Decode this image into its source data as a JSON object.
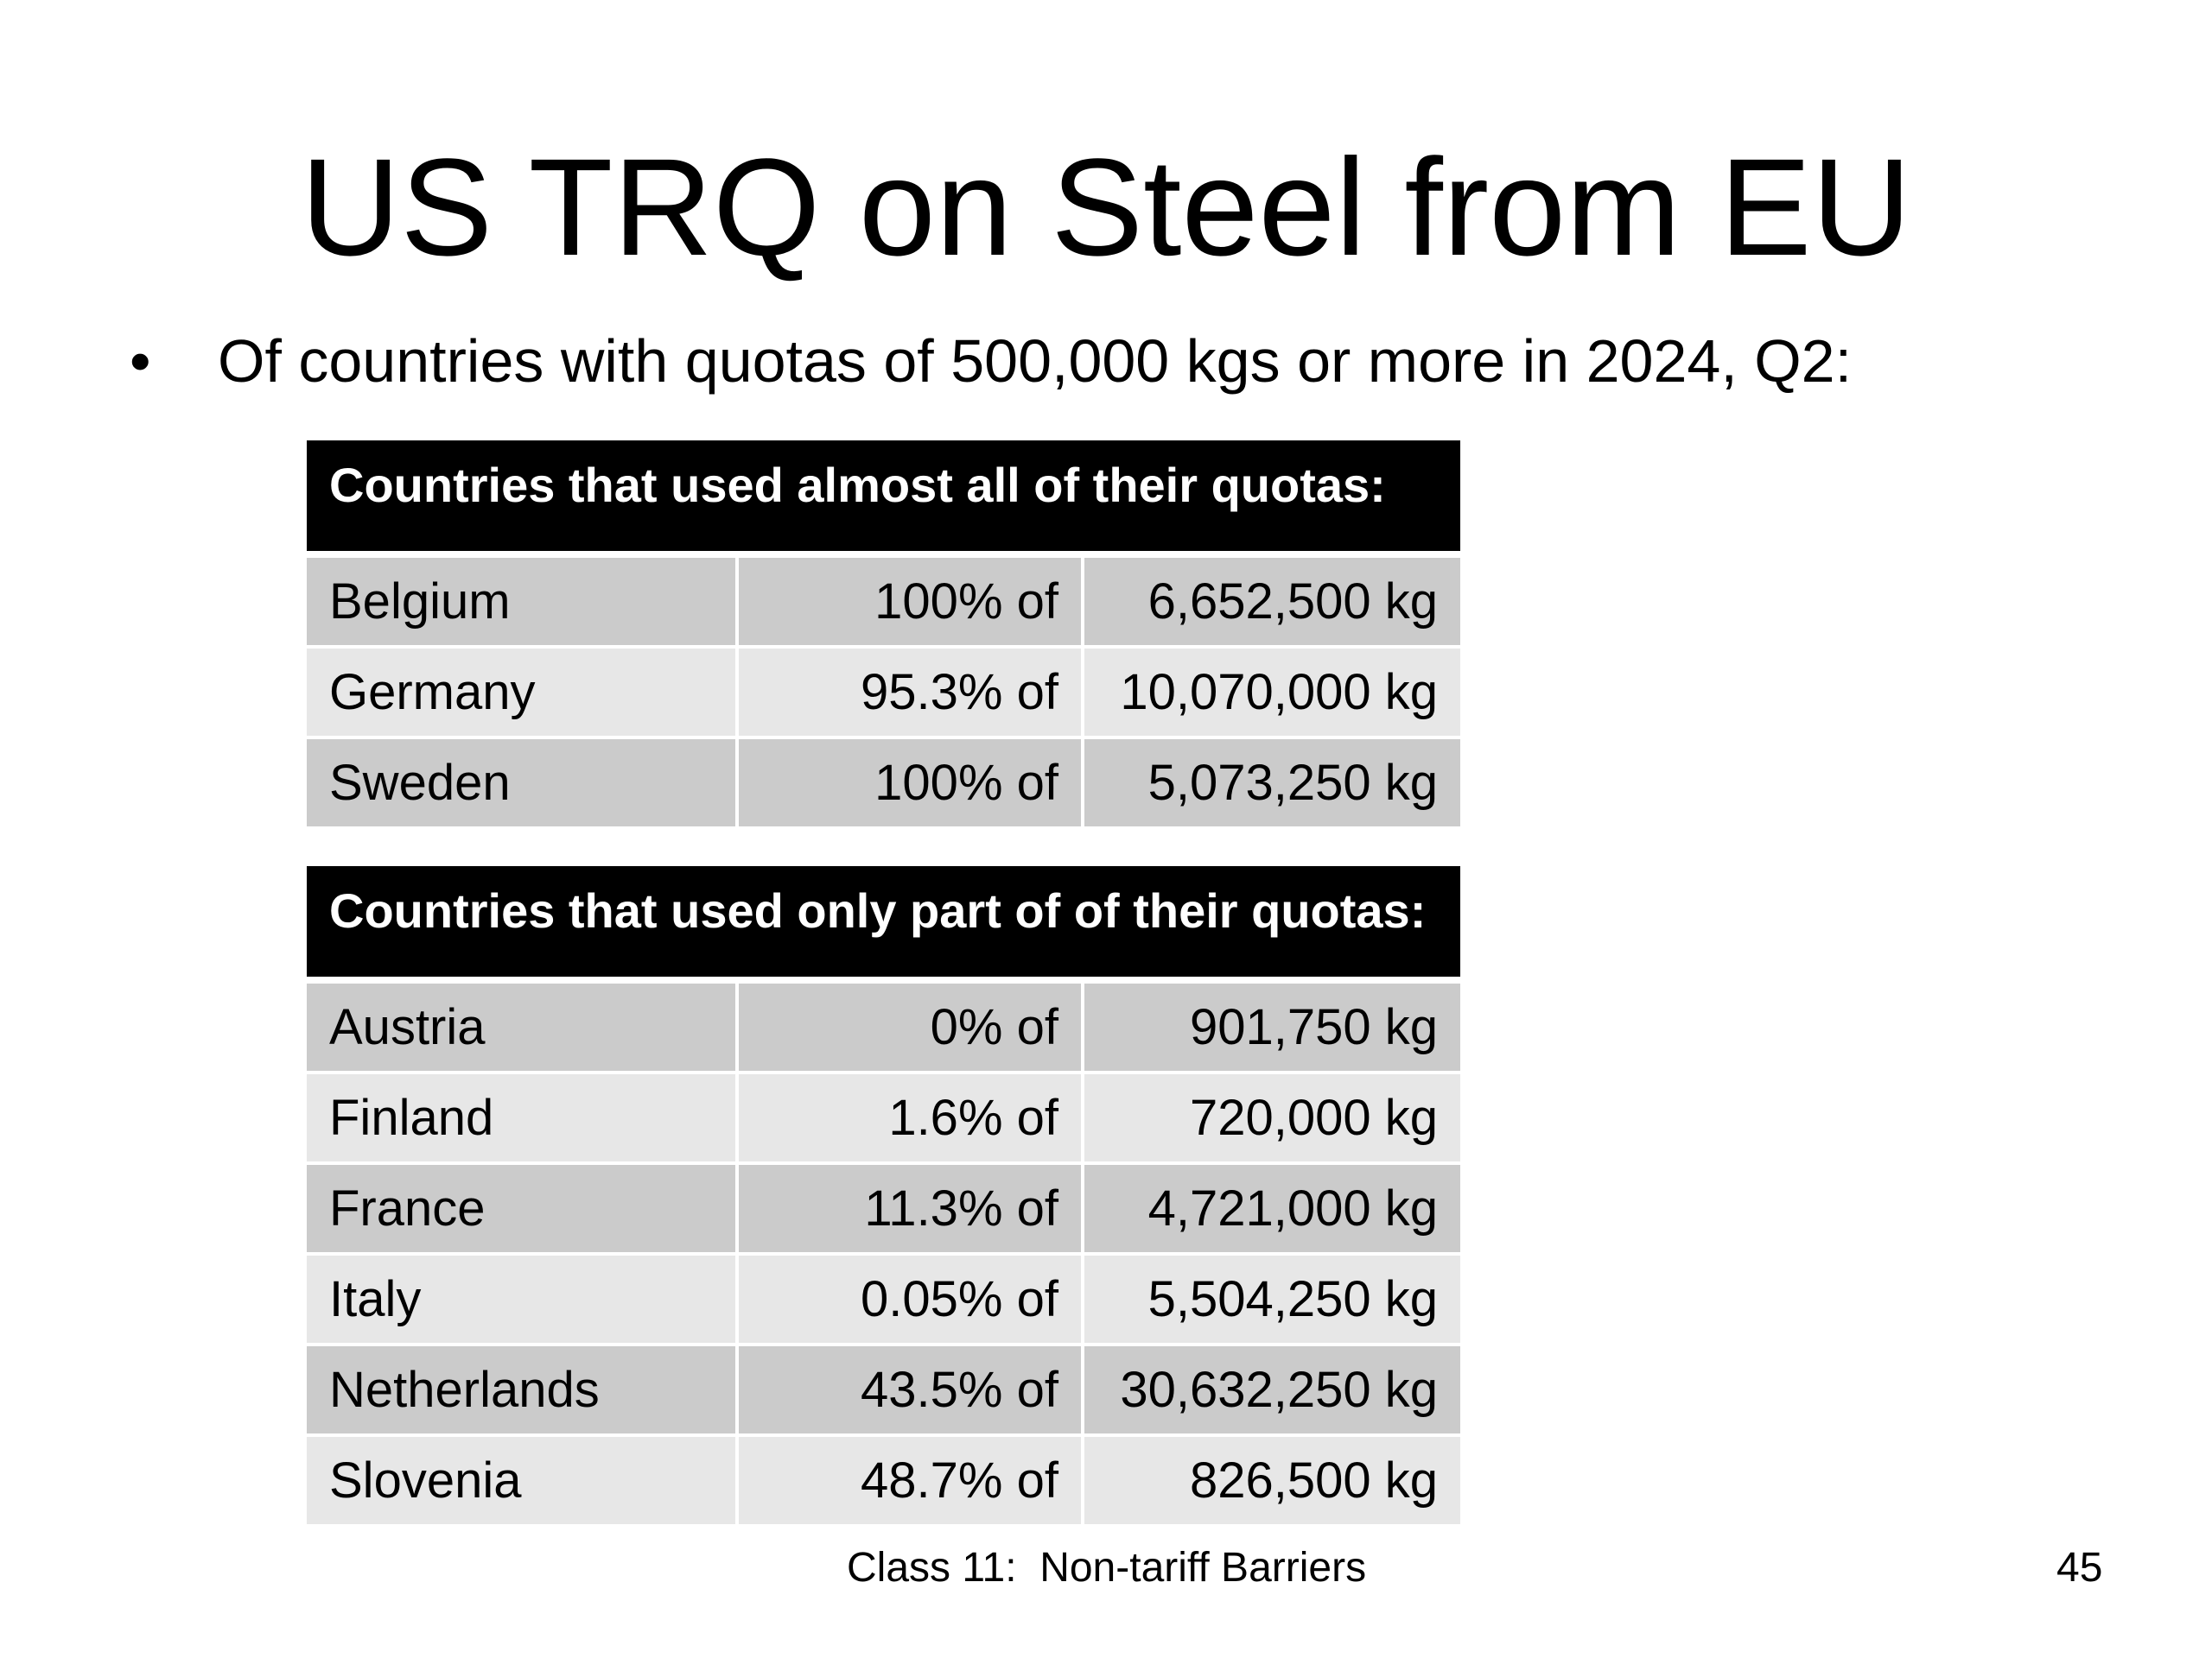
{
  "slide": {
    "title": "US TRQ on Steel from EU",
    "bullet_marker": "•",
    "bullet_text": "Of countries with quotas of 500,000 kgs or more in 2024, Q2:",
    "footer": "Class 11:  Non-tariff Barriers",
    "page_number": "45"
  },
  "tables": [
    {
      "header": "Countries that used almost all of their quotas:",
      "rows": [
        {
          "country": "Belgium",
          "percent_used": "100% of",
          "quota": "6,652,500 kg"
        },
        {
          "country": "Germany",
          "percent_used": "95.3% of",
          "quota": "10,070,000 kg"
        },
        {
          "country": "Sweden",
          "percent_used": "100% of",
          "quota": "5,073,250 kg"
        }
      ]
    },
    {
      "header": "Countries that used only part of of their quotas:",
      "rows": [
        {
          "country": "Austria",
          "percent_used": "0% of",
          "quota": "901,750 kg"
        },
        {
          "country": "Finland",
          "percent_used": "1.6% of",
          "quota": "720,000 kg"
        },
        {
          "country": "France",
          "percent_used": "11.3% of",
          "quota": "4,721,000 kg"
        },
        {
          "country": "Italy",
          "percent_used": "0.05% of",
          "quota": "5,504,250 kg"
        },
        {
          "country": "Netherlands",
          "percent_used": "43.5% of",
          "quota": "30,632,250 kg"
        },
        {
          "country": "Slovenia",
          "percent_used": "48.7% of",
          "quota": "826,500 kg"
        }
      ]
    }
  ],
  "colors": {
    "header_bg": "#000000",
    "row_dark": "#cbcbcb",
    "row_light": "#e7e7e7"
  }
}
